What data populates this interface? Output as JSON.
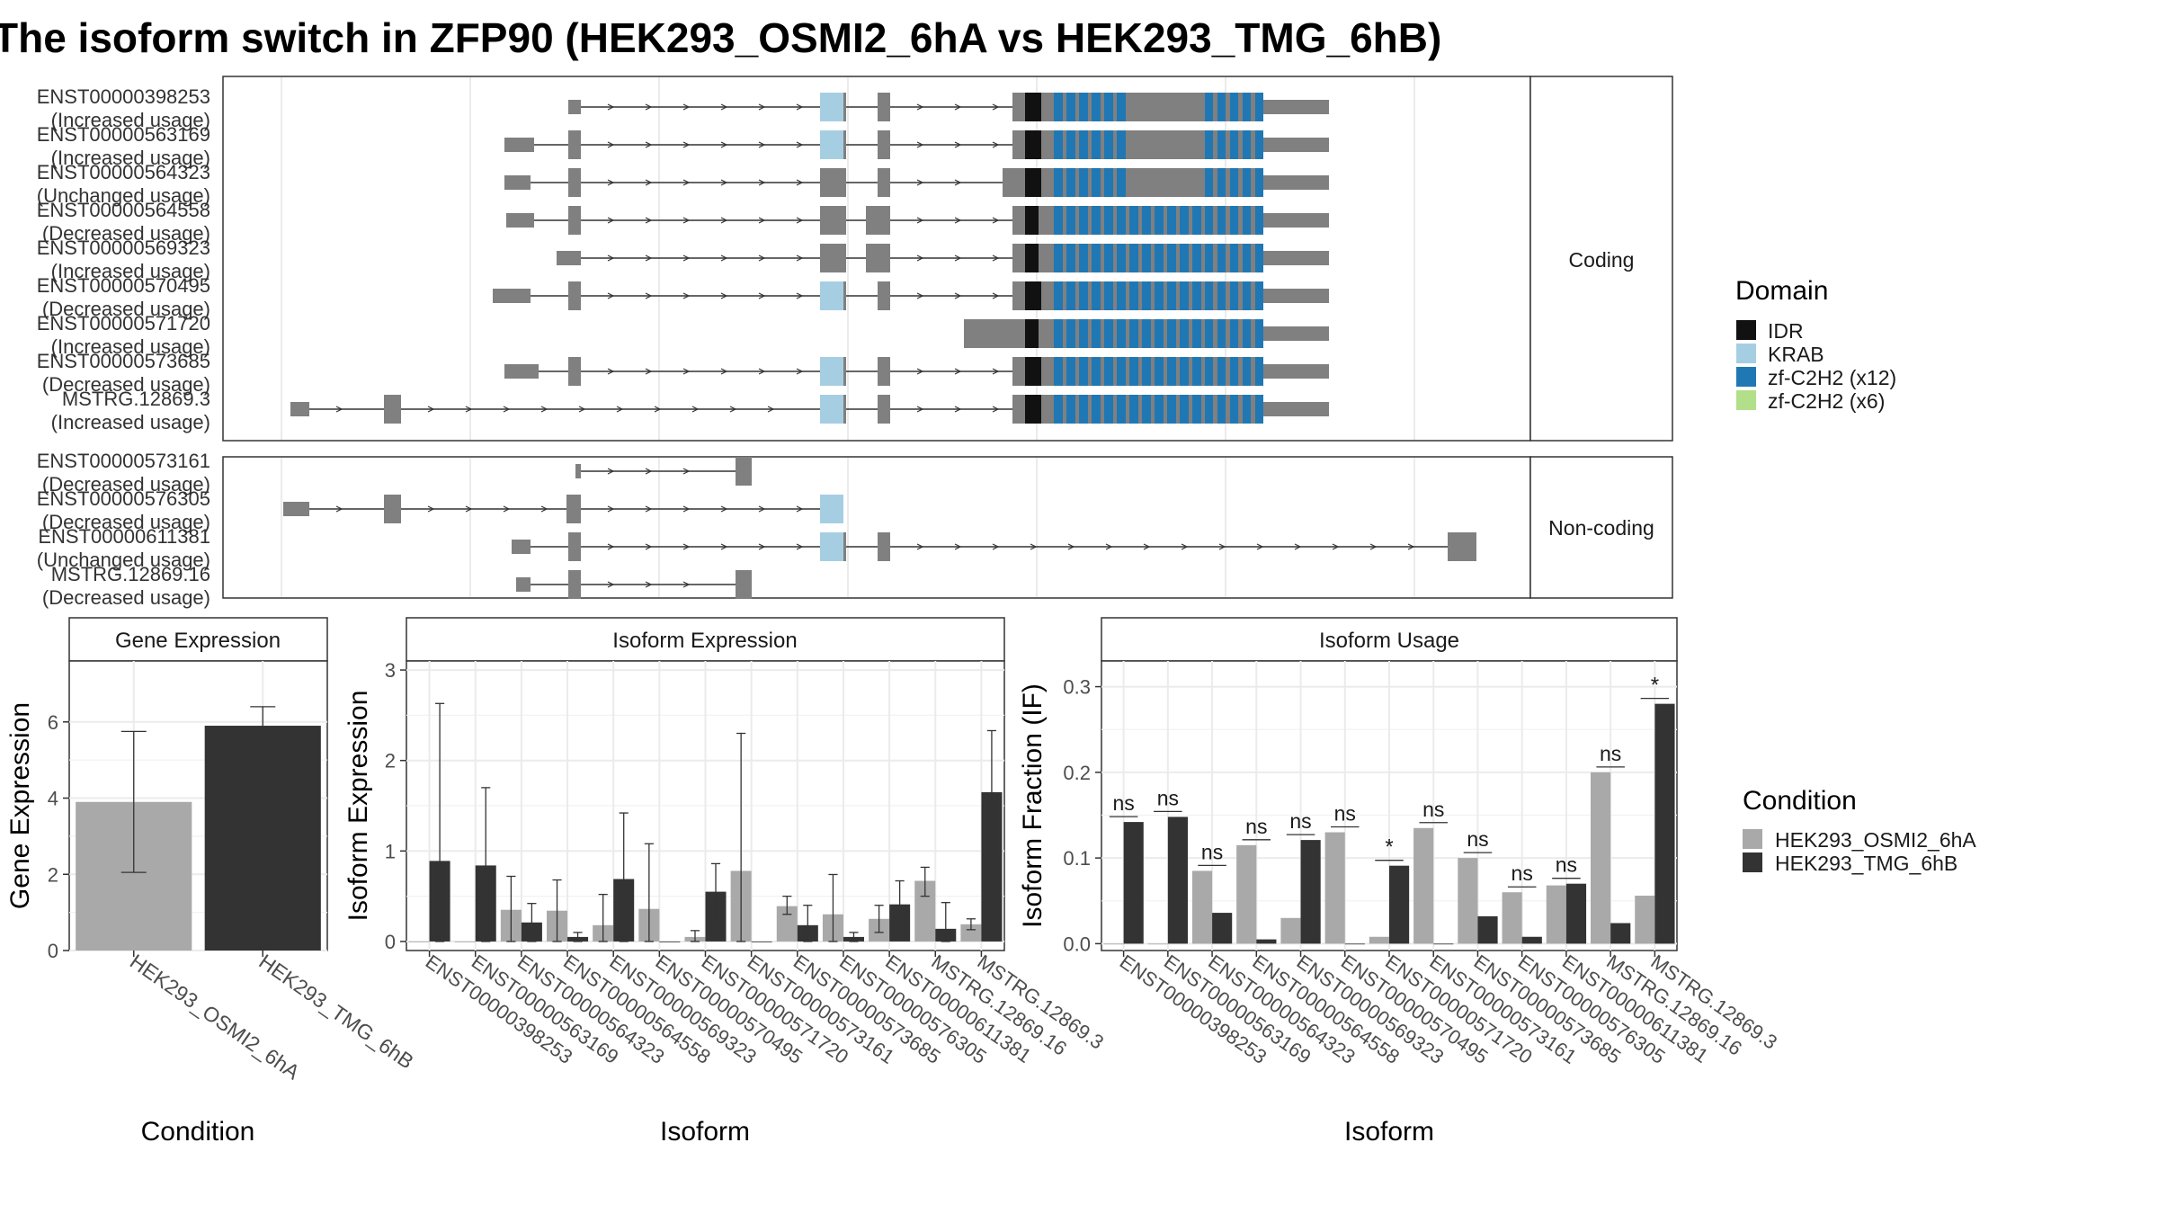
{
  "title": "The isoform switch in ZFP90 (HEK293_OSMI2_6hA vs HEK293_TMG_6hB)",
  "legends": {
    "domain": {
      "title": "Domain",
      "items": [
        {
          "label": "IDR",
          "color": "#111111"
        },
        {
          "label": "KRAB",
          "color": "#a6cee3"
        },
        {
          "label": "zf-C2H2 (x12)",
          "color": "#1f78b4"
        },
        {
          "label": "zf-C2H2 (x6)",
          "color": "#b2df8a"
        }
      ]
    },
    "condition": {
      "title": "Condition",
      "items": [
        {
          "label": "HEK293_OSMI2_6hA",
          "color": "#a9a9a9"
        },
        {
          "label": "HEK293_TMG_6hB",
          "color": "#333333"
        }
      ]
    }
  },
  "chart_data": [
    {
      "type": "gene-structure",
      "panel_label": "Coding",
      "transcripts": [
        {
          "id": "ENST00000398253",
          "usage": "(Increased usage)"
        },
        {
          "id": "ENST00000563169",
          "usage": "(Increased usage)"
        },
        {
          "id": "ENST00000564323",
          "usage": "(Unchanged usage)"
        },
        {
          "id": "ENST00000564558",
          "usage": "(Decreased usage)"
        },
        {
          "id": "ENST00000569323",
          "usage": "(Increased usage)"
        },
        {
          "id": "ENST00000570495",
          "usage": "(Decreased usage)"
        },
        {
          "id": "ENST00000571720",
          "usage": "(Increased usage)"
        },
        {
          "id": "ENST00000573685",
          "usage": "(Decreased usage)"
        },
        {
          "id": "MSTRG.12869.3",
          "usage": "(Increased usage)"
        }
      ]
    },
    {
      "type": "gene-structure",
      "panel_label": "Non-coding",
      "transcripts": [
        {
          "id": "ENST00000573161",
          "usage": "(Decreased usage)"
        },
        {
          "id": "ENST00000576305",
          "usage": "(Decreased usage)"
        },
        {
          "id": "ENST00000611381",
          "usage": "(Unchanged usage)"
        },
        {
          "id": "MSTRG.12869.16",
          "usage": "(Decreased usage)"
        }
      ]
    },
    {
      "type": "bar",
      "panel_title": "Gene Expression",
      "xlabel": "Condition",
      "ylabel": "Gene Expression",
      "ylim": [
        0,
        7.6
      ],
      "yticks": [
        0,
        2,
        4,
        6
      ],
      "categories": [
        "HEK293_OSMI2_6hA",
        "HEK293_TMG_6hB"
      ],
      "values": [
        3.9,
        5.9
      ],
      "error_low": [
        2.05,
        5.45
      ],
      "error_high": [
        5.75,
        6.4
      ]
    },
    {
      "type": "bar",
      "panel_title": "Isoform Expression",
      "xlabel": "Isoform",
      "ylabel": "Isoform Expression",
      "ylim": [
        -0.1,
        3.1
      ],
      "yticks": [
        0,
        1,
        2,
        3
      ],
      "categories": [
        "ENST00000398253",
        "ENST00000563169",
        "ENST00000564323",
        "ENST00000564558",
        "ENST00000569323",
        "ENST00000570495",
        "ENST00000571720",
        "ENST00000573161",
        "ENST00000573685",
        "ENST00000576305",
        "ENST00000611381",
        "MSTRG.12869.16",
        "MSTRG.12869.3"
      ],
      "series": [
        {
          "name": "HEK293_OSMI2_6hA",
          "values": [
            0.0,
            0.0,
            0.35,
            0.34,
            0.18,
            0.36,
            0.05,
            0.78,
            0.39,
            0.3,
            0.25,
            0.67,
            0.19
          ],
          "error_low": [
            null,
            null,
            0.0,
            0.0,
            0.0,
            0.0,
            0.0,
            0.0,
            0.3,
            0.0,
            0.1,
            0.5,
            0.13
          ],
          "error_high": [
            null,
            null,
            0.72,
            0.68,
            0.52,
            1.08,
            0.12,
            2.3,
            0.5,
            0.74,
            0.4,
            0.82,
            0.25
          ]
        },
        {
          "name": "HEK293_TMG_6hB",
          "values": [
            0.89,
            0.84,
            0.21,
            0.05,
            0.69,
            0.0,
            0.55,
            0.0,
            0.18,
            0.05,
            0.41,
            0.14,
            1.65
          ],
          "error_low": [
            0.0,
            0.0,
            0.0,
            0.0,
            0.0,
            null,
            0.25,
            null,
            0.0,
            0.0,
            0.15,
            0.0,
            0.95
          ],
          "error_high": [
            2.63,
            1.7,
            0.42,
            0.1,
            1.42,
            null,
            0.86,
            null,
            0.4,
            0.1,
            0.67,
            0.43,
            2.33
          ]
        }
      ]
    },
    {
      "type": "bar",
      "panel_title": "Isoform Usage",
      "xlabel": "Isoform",
      "ylabel": "Isoform Fraction (IF)",
      "ylim": [
        -0.008,
        0.33
      ],
      "yticks": [
        0.0,
        0.1,
        0.2,
        0.3
      ],
      "ytick_labels": [
        "0.0",
        "0.1",
        "0.2",
        "0.3"
      ],
      "categories": [
        "ENST00000398253",
        "ENST00000563169",
        "ENST00000564323",
        "ENST00000564558",
        "ENST00000569323",
        "ENST00000570495",
        "ENST00000571720",
        "ENST00000573161",
        "ENST00000573685",
        "ENST00000576305",
        "ENST00000611381",
        "MSTRG.12869.16",
        "MSTRG.12869.3"
      ],
      "series": [
        {
          "name": "HEK293_OSMI2_6hA",
          "values": [
            0.0,
            0.0,
            0.085,
            0.115,
            0.03,
            0.13,
            0.008,
            0.135,
            0.1,
            0.06,
            0.068,
            0.2,
            0.056
          ]
        },
        {
          "name": "HEK293_TMG_6hB",
          "values": [
            0.142,
            0.148,
            0.036,
            0.005,
            0.121,
            0.0,
            0.091,
            0.0,
            0.032,
            0.008,
            0.07,
            0.024,
            0.28
          ]
        }
      ],
      "significance": [
        "ns",
        "ns",
        "ns",
        "ns",
        "ns",
        "ns",
        "*",
        "ns",
        "ns",
        "ns",
        "ns",
        "ns",
        "*"
      ]
    }
  ]
}
